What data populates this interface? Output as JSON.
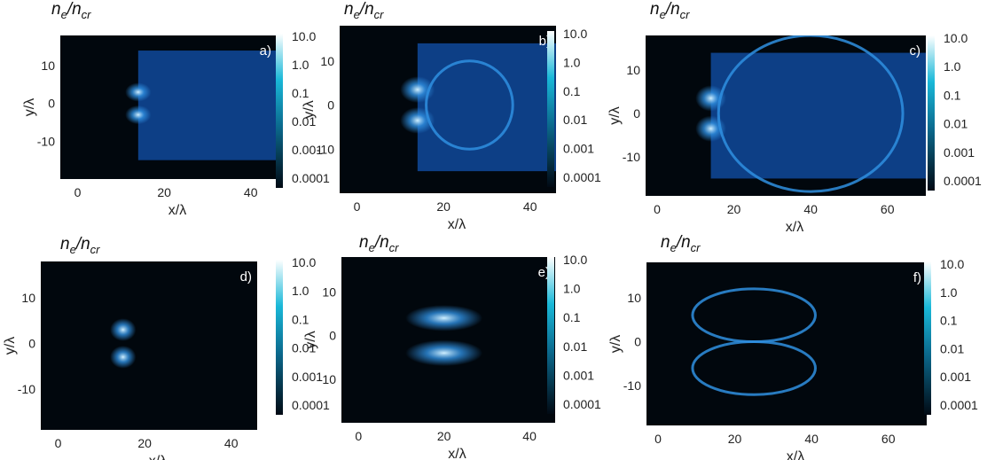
{
  "chart_data": [
    {
      "type": "heatmap",
      "panel": "a)",
      "title": {
        "n": "n",
        "sub_n": "e",
        "d": "n",
        "sub_d": "cr"
      },
      "xlabel": "x/λ",
      "ylabel": "y/λ",
      "xticks": [
        0,
        20,
        40
      ],
      "yticks": [
        10,
        0,
        -10
      ],
      "xlim": [
        -4,
        46
      ],
      "ylim": [
        -20,
        18
      ],
      "colorbar": [
        "10.0",
        "1.0",
        "0.1",
        "0.01",
        "0.001",
        "0.0001"
      ],
      "background": "blue-slab",
      "target_x": [
        14,
        46
      ],
      "target_y": [
        -15,
        14
      ],
      "features": [
        {
          "x": 14,
          "y": 3,
          "w": 3,
          "h": 2.5
        },
        {
          "x": 14,
          "y": -3,
          "w": 3,
          "h": 2.5
        }
      ]
    },
    {
      "type": "heatmap",
      "panel": "b)",
      "title": {
        "n": "n",
        "sub_n": "e",
        "d": "n",
        "sub_d": "cr"
      },
      "xlabel": "x/λ",
      "ylabel": "y/λ",
      "xticks": [
        0,
        20,
        40
      ],
      "yticks": [
        10,
        0,
        -10
      ],
      "xlim": [
        -4,
        46
      ],
      "ylim": [
        -20,
        18
      ],
      "colorbar": [
        "10.0",
        "1.0",
        "0.1",
        "0.01",
        "0.001",
        "0.0001"
      ],
      "background": "blue-slab",
      "target_x": [
        14,
        46
      ],
      "target_y": [
        -15,
        14
      ],
      "features": [
        {
          "x": 14,
          "y": 3.5,
          "w": 4,
          "h": 3
        },
        {
          "x": 14,
          "y": -3.5,
          "w": 4,
          "h": 3
        },
        {
          "x": 26,
          "y": 0,
          "w": 10,
          "h": 10
        }
      ]
    },
    {
      "type": "heatmap",
      "panel": "c)",
      "title": {
        "n": "n",
        "sub_n": "e",
        "d": "n",
        "sub_d": "cr"
      },
      "xlabel": "x/λ",
      "ylabel": "y/λ",
      "xticks": [
        0,
        20,
        40,
        60
      ],
      "yticks": [
        10,
        0,
        -10
      ],
      "xlim": [
        -3,
        70
      ],
      "ylim": [
        -19,
        18
      ],
      "colorbar": [
        "10.0",
        "1.0",
        "0.1",
        "0.01",
        "0.001",
        "0.0001"
      ],
      "background": "blue-slab",
      "target_x": [
        14,
        70
      ],
      "target_y": [
        -15,
        14
      ],
      "features": [
        {
          "x": 14,
          "y": 3.5,
          "w": 4,
          "h": 3
        },
        {
          "x": 14,
          "y": -3.5,
          "w": 4,
          "h": 3
        },
        {
          "x": 40,
          "y": 0,
          "w": 24,
          "h": 18
        }
      ]
    },
    {
      "type": "heatmap",
      "panel": "d)",
      "title": {
        "n": "n",
        "sub_n": "e",
        "d": "n",
        "sub_d": "cr"
      },
      "xlabel": "x/λ",
      "ylabel": "y/λ",
      "xticks": [
        0,
        20,
        40
      ],
      "yticks": [
        10,
        0,
        -10
      ],
      "xlim": [
        -4,
        46
      ],
      "ylim": [
        -19,
        18
      ],
      "colorbar": [
        "10.0",
        "1.0",
        "0.1",
        "0.01",
        "0.001",
        "0.0001"
      ],
      "background": "dark",
      "features": [
        {
          "x": 15,
          "y": 3,
          "w": 3,
          "h": 2.5
        },
        {
          "x": 15,
          "y": -3,
          "w": 3,
          "h": 2.5
        }
      ]
    },
    {
      "type": "heatmap",
      "panel": "e)",
      "title": {
        "n": "n",
        "sub_n": "e",
        "d": "n",
        "sub_d": "cr"
      },
      "xlabel": "x/λ",
      "ylabel": "y/λ",
      "xticks": [
        0,
        20,
        40
      ],
      "yticks": [
        10,
        0,
        -10
      ],
      "xlim": [
        -4,
        46
      ],
      "ylim": [
        -20,
        18
      ],
      "colorbar": [
        "10.0",
        "1.0",
        "0.1",
        "0.01",
        "0.001",
        "0.0001"
      ],
      "background": "dark",
      "features": [
        {
          "x": 20,
          "y": 4,
          "w": 9,
          "h": 3
        },
        {
          "x": 20,
          "y": -4,
          "w": 9,
          "h": 3
        }
      ]
    },
    {
      "type": "heatmap",
      "panel": "f)",
      "title": {
        "n": "n",
        "sub_n": "e",
        "d": "n",
        "sub_d": "cr"
      },
      "xlabel": "x/λ",
      "ylabel": "y/λ",
      "xticks": [
        0,
        20,
        40,
        60
      ],
      "yticks": [
        10,
        0,
        -10
      ],
      "xlim": [
        -3,
        70
      ],
      "ylim": [
        -19,
        18
      ],
      "colorbar": [
        "10.0",
        "1.0",
        "0.1",
        "0.01",
        "0.001",
        "0.0001"
      ],
      "background": "dark",
      "features": [
        {
          "x": 25,
          "y": 6,
          "w": 16,
          "h": 6
        },
        {
          "x": 25,
          "y": -6,
          "w": 16,
          "h": 6
        }
      ]
    }
  ],
  "colors": {
    "slab": "#0d3f86",
    "dark": "#01070d",
    "bright": "#cfefff",
    "mid": "#2f8fe0",
    "cb_low": "#010a14",
    "cb_high": "#ffffff"
  }
}
